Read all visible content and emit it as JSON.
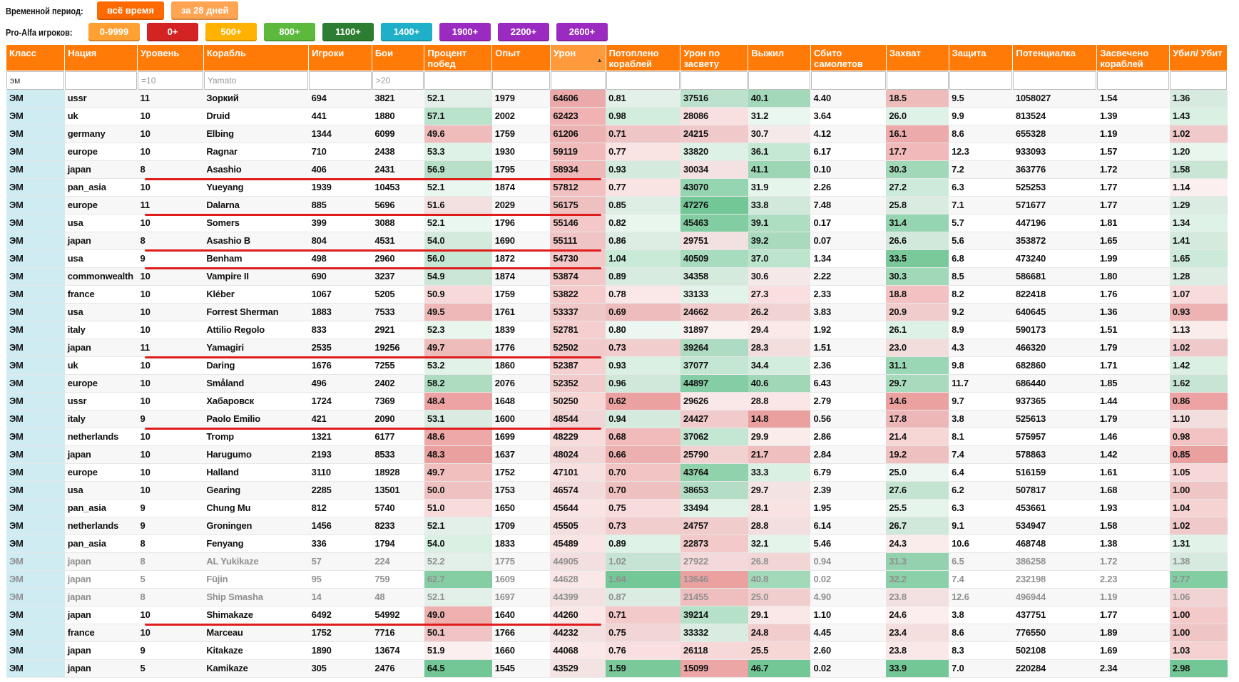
{
  "filters": {
    "period_label": "Временной период:",
    "period_buttons": [
      {
        "label": "всё время",
        "color": "#ff6a00"
      },
      {
        "label": "за 28 дней",
        "color": "#ffa452"
      }
    ],
    "players_label": "Pro-Alfa игроков:",
    "player_buttons": [
      {
        "label": "0-9999",
        "color": "#ffa033"
      },
      {
        "label": "0+",
        "color": "#d42323"
      },
      {
        "label": "500+",
        "color": "#ffb300"
      },
      {
        "label": "800+",
        "color": "#5cb93d"
      },
      {
        "label": "1100+",
        "color": "#2d7e32"
      },
      {
        "label": "1400+",
        "color": "#1eb0c8"
      },
      {
        "label": "1900+",
        "color": "#9b2bc0"
      },
      {
        "label": "2200+",
        "color": "#9b2bc0"
      },
      {
        "label": "2600+",
        "color": "#9b2bc0"
      }
    ]
  },
  "colors": {
    "header_orange": "#ff7a06",
    "class_cell": "#cfecf3",
    "good": "#5fbf88",
    "bad": "#e89a9a",
    "underline": "#e01b1b"
  },
  "columns": [
    {
      "key": "cls",
      "label": "Класс",
      "width": 81
    },
    {
      "key": "nat",
      "label": "Нация",
      "width": 101
    },
    {
      "key": "tier",
      "label": "Уровень",
      "width": 92
    },
    {
      "key": "ship",
      "label": "Корабль",
      "width": 146
    },
    {
      "key": "players",
      "label": "Игроки",
      "width": 88
    },
    {
      "key": "battles",
      "label": "Бои",
      "width": 73
    },
    {
      "key": "winrate",
      "label": "Процент побед",
      "width": 94
    },
    {
      "key": "xp",
      "label": "Опыт",
      "width": 81
    },
    {
      "key": "dmg",
      "label": "Урон",
      "width": 77
    },
    {
      "key": "sunk",
      "label": "Потоплено кораблей",
      "width": 104
    },
    {
      "key": "spot_dmg",
      "label": "Урон по засвету",
      "width": 94
    },
    {
      "key": "surv",
      "label": "Выжил",
      "width": 87
    },
    {
      "key": "planes",
      "label": "Сбито самолетов",
      "width": 105
    },
    {
      "key": "cap",
      "label": "Захват",
      "width": 87
    },
    {
      "key": "def",
      "label": "Защита",
      "width": 89
    },
    {
      "key": "potential",
      "label": "Потенциалка",
      "width": 117
    },
    {
      "key": "spotted",
      "label": "Засвечено кораблей",
      "width": 101
    },
    {
      "key": "kd",
      "label": "Убил/ Убит",
      "width": 80
    }
  ],
  "sort": {
    "column": "dmg",
    "direction": "desc",
    "arrow": "▲"
  },
  "column_filters": {
    "cls": {
      "value": "эм",
      "placeholder": ""
    },
    "tier": {
      "value": "",
      "placeholder": "=10"
    },
    "ship": {
      "value": "",
      "placeholder": "Yamato"
    },
    "battles": {
      "value": "",
      "placeholder": ">20"
    }
  },
  "rows": [
    {
      "cls": "ЭМ",
      "nat": "ussr",
      "tier": "11",
      "ship": "Зоркий",
      "players": "694",
      "battles": "3821",
      "winrate": "52.1",
      "xp": "1979",
      "dmg": "64606",
      "sunk": "0.81",
      "spot_dmg": "37516",
      "surv": "40.1",
      "planes": "4.40",
      "cap": "18.5",
      "def": "9.5",
      "potential": "1058027",
      "spotted": "1.54",
      "kd": "1.36"
    },
    {
      "cls": "ЭМ",
      "nat": "uk",
      "tier": "10",
      "ship": "Druid",
      "players": "441",
      "battles": "1880",
      "winrate": "57.1",
      "xp": "2002",
      "dmg": "62423",
      "sunk": "0.98",
      "spot_dmg": "28086",
      "surv": "31.2",
      "planes": "3.64",
      "cap": "26.0",
      "def": "9.9",
      "potential": "813524",
      "spotted": "1.39",
      "kd": "1.43"
    },
    {
      "cls": "ЭМ",
      "nat": "germany",
      "tier": "10",
      "ship": "Elbing",
      "players": "1344",
      "battles": "6099",
      "winrate": "49.6",
      "xp": "1759",
      "dmg": "61206",
      "sunk": "0.71",
      "spot_dmg": "24215",
      "surv": "30.7",
      "planes": "4.12",
      "cap": "16.1",
      "def": "8.6",
      "potential": "655328",
      "spotted": "1.19",
      "kd": "1.02"
    },
    {
      "cls": "ЭМ",
      "nat": "europe",
      "tier": "10",
      "ship": "Ragnar",
      "players": "710",
      "battles": "2438",
      "winrate": "53.3",
      "xp": "1930",
      "dmg": "59119",
      "sunk": "0.77",
      "spot_dmg": "33820",
      "surv": "36.1",
      "planes": "6.17",
      "cap": "17.7",
      "def": "12.3",
      "potential": "933093",
      "spotted": "1.57",
      "kd": "1.20"
    },
    {
      "cls": "ЭМ",
      "nat": "japan",
      "tier": "8",
      "ship": "Asashio",
      "players": "406",
      "battles": "2431",
      "winrate": "56.9",
      "xp": "1795",
      "dmg": "58934",
      "sunk": "0.93",
      "spot_dmg": "30034",
      "surv": "41.1",
      "planes": "0.10",
      "cap": "30.3",
      "def": "7.2",
      "potential": "363776",
      "spotted": "1.72",
      "kd": "1.58"
    },
    {
      "cls": "ЭМ",
      "nat": "pan_asia",
      "tier": "10",
      "ship": "Yueyang",
      "players": "1939",
      "battles": "10453",
      "winrate": "52.1",
      "xp": "1874",
      "dmg": "57812",
      "sunk": "0.77",
      "spot_dmg": "43070",
      "surv": "31.9",
      "planes": "2.26",
      "cap": "27.2",
      "def": "6.3",
      "potential": "525253",
      "spotted": "1.77",
      "kd": "1.14"
    },
    {
      "cls": "ЭМ",
      "nat": "europe",
      "tier": "11",
      "ship": "Dalarna",
      "players": "885",
      "battles": "5696",
      "winrate": "51.6",
      "xp": "2029",
      "dmg": "56175",
      "sunk": "0.85",
      "spot_dmg": "47276",
      "surv": "33.8",
      "planes": "7.48",
      "cap": "25.8",
      "def": "7.1",
      "potential": "571677",
      "spotted": "1.77",
      "kd": "1.29"
    },
    {
      "cls": "ЭМ",
      "nat": "usa",
      "tier": "10",
      "ship": "Somers",
      "players": "399",
      "battles": "3088",
      "winrate": "52.1",
      "xp": "1796",
      "dmg": "55146",
      "sunk": "0.82",
      "spot_dmg": "45463",
      "surv": "39.1",
      "planes": "0.17",
      "cap": "31.4",
      "def": "5.7",
      "potential": "447196",
      "spotted": "1.81",
      "kd": "1.34"
    },
    {
      "cls": "ЭМ",
      "nat": "japan",
      "tier": "8",
      "ship": "Asashio B",
      "players": "804",
      "battles": "4531",
      "winrate": "54.0",
      "xp": "1690",
      "dmg": "55111",
      "sunk": "0.86",
      "spot_dmg": "29751",
      "surv": "39.2",
      "planes": "0.07",
      "cap": "26.6",
      "def": "5.6",
      "potential": "353872",
      "spotted": "1.65",
      "kd": "1.41"
    },
    {
      "cls": "ЭМ",
      "nat": "usa",
      "tier": "9",
      "ship": "Benham",
      "players": "498",
      "battles": "2960",
      "winrate": "56.0",
      "xp": "1872",
      "dmg": "54730",
      "sunk": "1.04",
      "spot_dmg": "40509",
      "surv": "37.0",
      "planes": "1.34",
      "cap": "33.5",
      "def": "6.8",
      "potential": "473240",
      "spotted": "1.99",
      "kd": "1.65"
    },
    {
      "cls": "ЭМ",
      "nat": "commonwealth",
      "tier": "10",
      "ship": "Vampire II",
      "players": "690",
      "battles": "3237",
      "winrate": "54.9",
      "xp": "1874",
      "dmg": "53874",
      "sunk": "0.89",
      "spot_dmg": "34358",
      "surv": "30.6",
      "planes": "2.22",
      "cap": "30.3",
      "def": "8.5",
      "potential": "586681",
      "spotted": "1.80",
      "kd": "1.28"
    },
    {
      "cls": "ЭМ",
      "nat": "france",
      "tier": "10",
      "ship": "Kléber",
      "players": "1067",
      "battles": "5205",
      "winrate": "50.9",
      "xp": "1759",
      "dmg": "53822",
      "sunk": "0.78",
      "spot_dmg": "33133",
      "surv": "27.3",
      "planes": "2.33",
      "cap": "18.8",
      "def": "8.2",
      "potential": "822418",
      "spotted": "1.76",
      "kd": "1.07"
    },
    {
      "cls": "ЭМ",
      "nat": "usa",
      "tier": "10",
      "ship": "Forrest Sherman",
      "players": "1883",
      "battles": "7533",
      "winrate": "49.5",
      "xp": "1761",
      "dmg": "53337",
      "sunk": "0.69",
      "spot_dmg": "24662",
      "surv": "26.2",
      "planes": "3.83",
      "cap": "20.9",
      "def": "9.2",
      "potential": "640645",
      "spotted": "1.36",
      "kd": "0.93"
    },
    {
      "cls": "ЭМ",
      "nat": "italy",
      "tier": "10",
      "ship": "Attilio Regolo",
      "players": "833",
      "battles": "2921",
      "winrate": "52.3",
      "xp": "1839",
      "dmg": "52781",
      "sunk": "0.80",
      "spot_dmg": "31897",
      "surv": "29.4",
      "planes": "1.92",
      "cap": "26.1",
      "def": "8.9",
      "potential": "590173",
      "spotted": "1.51",
      "kd": "1.13"
    },
    {
      "cls": "ЭМ",
      "nat": "japan",
      "tier": "11",
      "ship": "Yamagiri",
      "players": "2535",
      "battles": "19256",
      "winrate": "49.7",
      "xp": "1776",
      "dmg": "52502",
      "sunk": "0.73",
      "spot_dmg": "39264",
      "surv": "28.3",
      "planes": "1.51",
      "cap": "23.0",
      "def": "4.3",
      "potential": "466320",
      "spotted": "1.79",
      "kd": "1.02"
    },
    {
      "cls": "ЭМ",
      "nat": "uk",
      "tier": "10",
      "ship": "Daring",
      "players": "1676",
      "battles": "7255",
      "winrate": "53.2",
      "xp": "1860",
      "dmg": "52387",
      "sunk": "0.93",
      "spot_dmg": "37077",
      "surv": "34.4",
      "planes": "2.36",
      "cap": "31.1",
      "def": "9.8",
      "potential": "682860",
      "spotted": "1.71",
      "kd": "1.42"
    },
    {
      "cls": "ЭМ",
      "nat": "europe",
      "tier": "10",
      "ship": "Småland",
      "players": "496",
      "battles": "2402",
      "winrate": "58.2",
      "xp": "2076",
      "dmg": "52352",
      "sunk": "0.96",
      "spot_dmg": "44897",
      "surv": "40.6",
      "planes": "6.43",
      "cap": "29.7",
      "def": "11.7",
      "potential": "686440",
      "spotted": "1.85",
      "kd": "1.62"
    },
    {
      "cls": "ЭМ",
      "nat": "ussr",
      "tier": "10",
      "ship": "Хабаровск",
      "players": "1724",
      "battles": "7369",
      "winrate": "48.4",
      "xp": "1648",
      "dmg": "50250",
      "sunk": "0.62",
      "spot_dmg": "29626",
      "surv": "28.8",
      "planes": "2.79",
      "cap": "14.6",
      "def": "9.7",
      "potential": "937365",
      "spotted": "1.44",
      "kd": "0.86"
    },
    {
      "cls": "ЭМ",
      "nat": "italy",
      "tier": "9",
      "ship": "Paolo Emilio",
      "players": "421",
      "battles": "2090",
      "winrate": "53.1",
      "xp": "1600",
      "dmg": "48544",
      "sunk": "0.94",
      "spot_dmg": "24427",
      "surv": "14.8",
      "planes": "0.56",
      "cap": "17.8",
      "def": "3.8",
      "potential": "525613",
      "spotted": "1.79",
      "kd": "1.10"
    },
    {
      "cls": "ЭМ",
      "nat": "netherlands",
      "tier": "10",
      "ship": "Tromp",
      "players": "1321",
      "battles": "6177",
      "winrate": "48.6",
      "xp": "1699",
      "dmg": "48229",
      "sunk": "0.68",
      "spot_dmg": "37062",
      "surv": "29.9",
      "planes": "2.86",
      "cap": "21.4",
      "def": "8.1",
      "potential": "575957",
      "spotted": "1.46",
      "kd": "0.98"
    },
    {
      "cls": "ЭМ",
      "nat": "japan",
      "tier": "10",
      "ship": "Harugumo",
      "players": "2193",
      "battles": "8533",
      "winrate": "48.3",
      "xp": "1637",
      "dmg": "48024",
      "sunk": "0.66",
      "spot_dmg": "25790",
      "surv": "21.7",
      "planes": "2.84",
      "cap": "19.2",
      "def": "7.4",
      "potential": "578863",
      "spotted": "1.42",
      "kd": "0.85"
    },
    {
      "cls": "ЭМ",
      "nat": "europe",
      "tier": "10",
      "ship": "Halland",
      "players": "3110",
      "battles": "18928",
      "winrate": "49.7",
      "xp": "1752",
      "dmg": "47101",
      "sunk": "0.70",
      "spot_dmg": "43764",
      "surv": "33.3",
      "planes": "6.79",
      "cap": "25.0",
      "def": "6.4",
      "potential": "516159",
      "spotted": "1.61",
      "kd": "1.05"
    },
    {
      "cls": "ЭМ",
      "nat": "usa",
      "tier": "10",
      "ship": "Gearing",
      "players": "2285",
      "battles": "13501",
      "winrate": "50.0",
      "xp": "1753",
      "dmg": "46574",
      "sunk": "0.70",
      "spot_dmg": "38653",
      "surv": "29.7",
      "planes": "2.39",
      "cap": "27.6",
      "def": "6.2",
      "potential": "507817",
      "spotted": "1.68",
      "kd": "1.00"
    },
    {
      "cls": "ЭМ",
      "nat": "pan_asia",
      "tier": "9",
      "ship": "Chung Mu",
      "players": "812",
      "battles": "5740",
      "winrate": "51.0",
      "xp": "1650",
      "dmg": "45644",
      "sunk": "0.75",
      "spot_dmg": "33494",
      "surv": "28.1",
      "planes": "1.95",
      "cap": "25.5",
      "def": "6.3",
      "potential": "453661",
      "spotted": "1.93",
      "kd": "1.04"
    },
    {
      "cls": "ЭМ",
      "nat": "netherlands",
      "tier": "9",
      "ship": "Groningen",
      "players": "1456",
      "battles": "8233",
      "winrate": "52.1",
      "xp": "1709",
      "dmg": "45505",
      "sunk": "0.73",
      "spot_dmg": "24757",
      "surv": "28.8",
      "planes": "6.14",
      "cap": "26.7",
      "def": "9.1",
      "potential": "534947",
      "spotted": "1.58",
      "kd": "1.02"
    },
    {
      "cls": "ЭМ",
      "nat": "pan_asia",
      "tier": "8",
      "ship": "Fenyang",
      "players": "336",
      "battles": "1794",
      "winrate": "54.0",
      "xp": "1833",
      "dmg": "45489",
      "sunk": "0.89",
      "spot_dmg": "22873",
      "surv": "32.1",
      "planes": "5.46",
      "cap": "24.3",
      "def": "10.6",
      "potential": "468748",
      "spotted": "1.38",
      "kd": "1.31"
    },
    {
      "cls": "ЭМ",
      "nat": "japan",
      "tier": "8",
      "ship": "AL Yukikaze",
      "players": "57",
      "battles": "224",
      "winrate": "52.2",
      "xp": "1775",
      "dmg": "44905",
      "sunk": "1.02",
      "spot_dmg": "27922",
      "surv": "26.8",
      "planes": "0.94",
      "cap": "31.3",
      "def": "6.5",
      "potential": "386258",
      "spotted": "1.72",
      "kd": "1.38",
      "dim": true
    },
    {
      "cls": "ЭМ",
      "nat": "japan",
      "tier": "5",
      "ship": "Fūjin",
      "players": "95",
      "battles": "759",
      "winrate": "62.7",
      "xp": "1609",
      "dmg": "44628",
      "sunk": "1.64",
      "spot_dmg": "13646",
      "surv": "40.8",
      "planes": "0.02",
      "cap": "32.2",
      "def": "7.4",
      "potential": "232198",
      "spotted": "2.23",
      "kd": "2.77",
      "dim": true
    },
    {
      "cls": "ЭМ",
      "nat": "japan",
      "tier": "8",
      "ship": "Ship Smasha",
      "players": "14",
      "battles": "48",
      "winrate": "52.1",
      "xp": "1697",
      "dmg": "44399",
      "sunk": "0.87",
      "spot_dmg": "21455",
      "surv": "25.0",
      "planes": "4.90",
      "cap": "23.8",
      "def": "12.6",
      "potential": "496944",
      "spotted": "1.19",
      "kd": "1.06",
      "dim": true
    },
    {
      "cls": "ЭМ",
      "nat": "japan",
      "tier": "10",
      "ship": "Shimakaze",
      "players": "6492",
      "battles": "54992",
      "winrate": "49.0",
      "xp": "1640",
      "dmg": "44260",
      "sunk": "0.71",
      "spot_dmg": "39214",
      "surv": "29.1",
      "planes": "1.10",
      "cap": "24.6",
      "def": "3.8",
      "potential": "437751",
      "spotted": "1.77",
      "kd": "1.00"
    },
    {
      "cls": "ЭМ",
      "nat": "france",
      "tier": "10",
      "ship": "Marceau",
      "players": "1752",
      "battles": "7716",
      "winrate": "50.1",
      "xp": "1766",
      "dmg": "44232",
      "sunk": "0.75",
      "spot_dmg": "33332",
      "surv": "24.8",
      "planes": "4.45",
      "cap": "23.4",
      "def": "8.6",
      "potential": "776550",
      "spotted": "1.89",
      "kd": "1.00"
    },
    {
      "cls": "ЭМ",
      "nat": "japan",
      "tier": "9",
      "ship": "Kitakaze",
      "players": "1890",
      "battles": "13674",
      "winrate": "51.9",
      "xp": "1660",
      "dmg": "44068",
      "sunk": "0.76",
      "spot_dmg": "26118",
      "surv": "25.5",
      "planes": "2.60",
      "cap": "23.8",
      "def": "8.3",
      "potential": "502108",
      "spotted": "1.69",
      "kd": "1.03"
    },
    {
      "cls": "ЭМ",
      "nat": "japan",
      "tier": "5",
      "ship": "Kamikaze",
      "players": "305",
      "battles": "2476",
      "winrate": "64.5",
      "xp": "1545",
      "dmg": "43529",
      "sunk": "1.59",
      "spot_dmg": "15099",
      "surv": "46.7",
      "planes": "0.02",
      "cap": "33.9",
      "def": "7.0",
      "potential": "220284",
      "spotted": "2.34",
      "kd": "2.98"
    }
  ]
}
